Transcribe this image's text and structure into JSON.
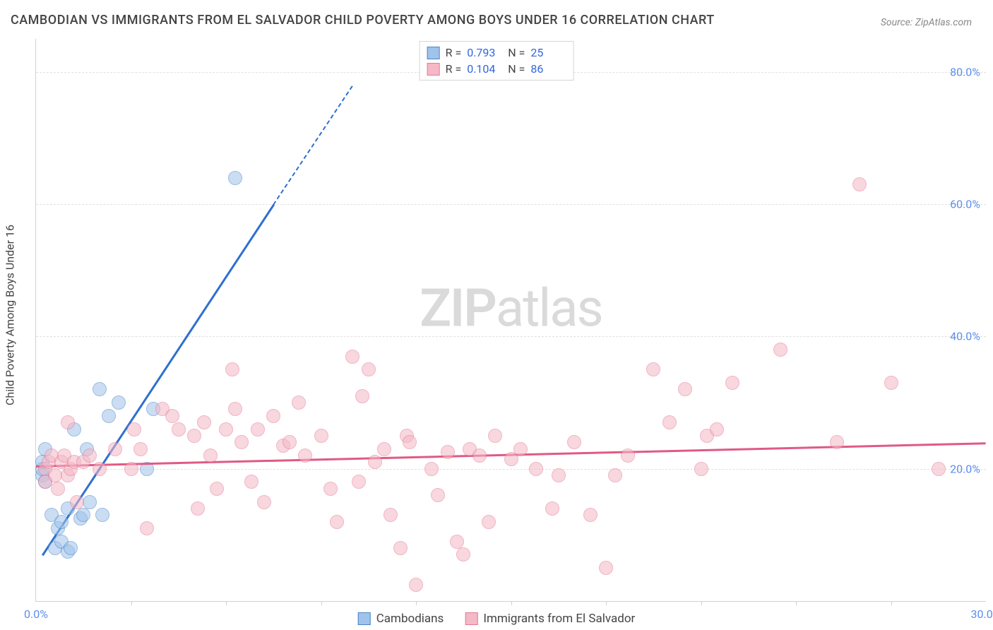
{
  "title": "CAMBODIAN VS IMMIGRANTS FROM EL SALVADOR CHILD POVERTY AMONG BOYS UNDER 16 CORRELATION CHART",
  "source_label": "Source: ZipAtlas.com",
  "y_axis_label": "Child Poverty Among Boys Under 16",
  "watermark_a": "ZIP",
  "watermark_b": "atlas",
  "chart": {
    "type": "scatter",
    "background_color": "#ffffff",
    "grid_color": "#e0e0e0",
    "axis_color": "#d0d0d0",
    "tick_label_color": "#5b8def",
    "text_color": "#444444",
    "xlim": [
      0,
      30
    ],
    "ylim": [
      0,
      85
    ],
    "marker_radius": 10,
    "marker_opacity": 0.55,
    "y_ticks": [
      {
        "v": 20,
        "label": "20.0%"
      },
      {
        "v": 40,
        "label": "40.0%"
      },
      {
        "v": 60,
        "label": "60.0%"
      },
      {
        "v": 80,
        "label": "80.0%"
      }
    ],
    "x_ticks": [
      {
        "v": 0,
        "label": "0.0%"
      },
      {
        "v": 30,
        "label": "30.0%"
      }
    ],
    "x_minor_ticks": [
      3,
      6,
      9,
      12,
      15,
      18,
      21,
      24,
      27
    ],
    "series": [
      {
        "name": "Cambodians",
        "fill": "#9fc3ea",
        "stroke": "#4a87c7",
        "line_color": "#2f6fd0",
        "r_label": "R =",
        "r_value": "0.793",
        "n_label": "N =",
        "n_value": "25",
        "trend": {
          "x1": 0.2,
          "y1": 7,
          "x2": 7.5,
          "y2": 60,
          "dash_to_x": 10.0,
          "dash_to_y": 78
        },
        "points": [
          [
            0.2,
            19
          ],
          [
            0.2,
            20
          ],
          [
            0.2,
            21
          ],
          [
            0.3,
            18
          ],
          [
            0.3,
            23
          ],
          [
            0.5,
            13
          ],
          [
            0.6,
            8
          ],
          [
            0.7,
            11
          ],
          [
            0.8,
            12
          ],
          [
            0.8,
            9
          ],
          [
            1.0,
            14
          ],
          [
            1.0,
            7.5
          ],
          [
            1.1,
            8
          ],
          [
            1.2,
            26
          ],
          [
            1.4,
            12.5
          ],
          [
            1.5,
            13
          ],
          [
            1.6,
            23
          ],
          [
            1.7,
            15
          ],
          [
            2.0,
            32
          ],
          [
            2.1,
            13
          ],
          [
            2.3,
            28
          ],
          [
            2.6,
            30
          ],
          [
            3.5,
            20
          ],
          [
            3.7,
            29
          ],
          [
            6.3,
            64
          ]
        ]
      },
      {
        "name": "Immigrants from El Salvador",
        "fill": "#f4b8c6",
        "stroke": "#e47a97",
        "line_color": "#e05a84",
        "r_label": "R =",
        "r_value": "0.104",
        "n_label": "N =",
        "n_value": "86",
        "trend": {
          "x1": 0,
          "y1": 20.5,
          "x2": 30,
          "y2": 24
        },
        "points": [
          [
            0.3,
            20
          ],
          [
            0.3,
            18
          ],
          [
            0.4,
            21
          ],
          [
            0.5,
            22
          ],
          [
            0.6,
            19
          ],
          [
            0.7,
            17
          ],
          [
            0.8,
            21
          ],
          [
            0.9,
            22
          ],
          [
            1.0,
            19
          ],
          [
            1.0,
            27
          ],
          [
            1.1,
            20
          ],
          [
            1.2,
            21
          ],
          [
            1.3,
            15
          ],
          [
            1.5,
            21
          ],
          [
            1.7,
            22
          ],
          [
            2.0,
            20
          ],
          [
            2.5,
            23
          ],
          [
            3.0,
            20
          ],
          [
            3.1,
            26
          ],
          [
            3.3,
            23
          ],
          [
            3.5,
            11
          ],
          [
            4.0,
            29
          ],
          [
            4.3,
            28
          ],
          [
            4.5,
            26
          ],
          [
            5.0,
            25
          ],
          [
            5.1,
            14
          ],
          [
            5.3,
            27
          ],
          [
            5.5,
            22
          ],
          [
            5.7,
            17
          ],
          [
            6.0,
            26
          ],
          [
            6.2,
            35
          ],
          [
            6.3,
            29
          ],
          [
            6.5,
            24
          ],
          [
            6.8,
            18
          ],
          [
            7.0,
            26
          ],
          [
            7.2,
            15
          ],
          [
            7.5,
            28
          ],
          [
            7.8,
            23.5
          ],
          [
            8.0,
            24
          ],
          [
            8.3,
            30
          ],
          [
            8.5,
            22
          ],
          [
            9.0,
            25
          ],
          [
            9.3,
            17
          ],
          [
            9.5,
            12
          ],
          [
            10.0,
            37
          ],
          [
            10.2,
            18
          ],
          [
            10.3,
            31
          ],
          [
            10.5,
            35
          ],
          [
            10.7,
            21
          ],
          [
            11.0,
            23
          ],
          [
            11.2,
            13
          ],
          [
            11.5,
            8
          ],
          [
            11.7,
            25
          ],
          [
            11.8,
            24
          ],
          [
            12.0,
            2.5
          ],
          [
            12.5,
            20
          ],
          [
            12.7,
            16
          ],
          [
            13.0,
            22.5
          ],
          [
            13.3,
            9
          ],
          [
            13.5,
            7
          ],
          [
            13.7,
            23
          ],
          [
            14.0,
            22
          ],
          [
            14.3,
            12
          ],
          [
            14.5,
            25
          ],
          [
            15.0,
            21.5
          ],
          [
            15.3,
            23
          ],
          [
            15.8,
            20
          ],
          [
            16.3,
            14
          ],
          [
            16.5,
            19
          ],
          [
            17.0,
            24
          ],
          [
            17.5,
            13
          ],
          [
            18.0,
            5
          ],
          [
            18.3,
            19
          ],
          [
            18.7,
            22
          ],
          [
            19.5,
            35
          ],
          [
            20.0,
            27
          ],
          [
            20.5,
            32
          ],
          [
            21.0,
            20
          ],
          [
            21.2,
            25
          ],
          [
            21.5,
            26
          ],
          [
            22.0,
            33
          ],
          [
            23.5,
            38
          ],
          [
            25.3,
            24
          ],
          [
            26.0,
            63
          ],
          [
            27.0,
            33
          ],
          [
            28.5,
            20
          ]
        ]
      }
    ]
  },
  "stats_box_border": "#d5d5d5",
  "legend": {
    "items": [
      {
        "label": "Cambodians",
        "fill": "#9fc3ea",
        "stroke": "#4a87c7"
      },
      {
        "label": "Immigrants from El Salvador",
        "fill": "#f4b8c6",
        "stroke": "#e47a97"
      }
    ]
  }
}
